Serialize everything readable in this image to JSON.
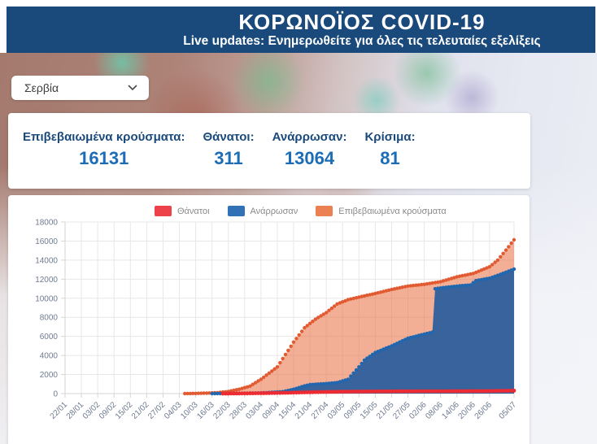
{
  "header": {
    "title": "ΚΟΡΩΝΟΪΟΣ COVID-19",
    "subtitle": "Live updates: Ενημερωθείτε για όλες τις τελευταίες εξελίξεις"
  },
  "country_selector": {
    "value": "Σερβία",
    "icon": "chevron-down"
  },
  "stats": {
    "items": [
      {
        "label": "Επιβεβαιωμένα κρούσματα:",
        "value": "16131"
      },
      {
        "label": "Θάνατοι:",
        "value": "311"
      },
      {
        "label": "Ανάρρωσαν:",
        "value": "13064"
      },
      {
        "label": "Κρίσιμα:",
        "value": "81"
      }
    ]
  },
  "colors": {
    "navy": "#1A4A7C",
    "stat_blue": "#1C6DB6",
    "deaths_red": "#ED2B33",
    "recovered_blue": "#2267AE",
    "confirmed_orange": "#E25A31",
    "grid": "#E7E7E7",
    "axis": "#D5D5D5",
    "tick_text": "#6E7B90"
  },
  "chart_data": {
    "type": "area",
    "title": "",
    "xlabel": "",
    "ylabel": "",
    "ylim": [
      0,
      18000
    ],
    "y_ticks": [
      0,
      2000,
      4000,
      6000,
      8000,
      10000,
      12000,
      14000,
      16000,
      18000
    ],
    "grid": true,
    "legend_position": "top",
    "legend": [
      {
        "label": "Θάνατοι",
        "color": "#EE424A"
      },
      {
        "label": "Ανάρρωσαν",
        "color": "#3072B5"
      },
      {
        "label": "Επιβεβαιωμένα κρούσματα",
        "color": "#EB8153"
      }
    ],
    "x_ticks": [
      {
        "label": "22/01",
        "day": 0
      },
      {
        "label": "28/01",
        "day": 6
      },
      {
        "label": "03/02",
        "day": 12
      },
      {
        "label": "09/02",
        "day": 18
      },
      {
        "label": "15/02",
        "day": 24
      },
      {
        "label": "21/02",
        "day": 30
      },
      {
        "label": "27/02",
        "day": 36
      },
      {
        "label": "04/03",
        "day": 42
      },
      {
        "label": "10/03",
        "day": 48
      },
      {
        "label": "16/03",
        "day": 54
      },
      {
        "label": "22/03",
        "day": 60
      },
      {
        "label": "28/03",
        "day": 66
      },
      {
        "label": "03/04",
        "day": 72
      },
      {
        "label": "09/04",
        "day": 78
      },
      {
        "label": "15/04",
        "day": 84
      },
      {
        "label": "21/04",
        "day": 90
      },
      {
        "label": "27/04",
        "day": 96
      },
      {
        "label": "03/05",
        "day": 102
      },
      {
        "label": "09/05",
        "day": 108
      },
      {
        "label": "15/05",
        "day": 114
      },
      {
        "label": "21/05",
        "day": 120
      },
      {
        "label": "27/05",
        "day": 126
      },
      {
        "label": "02/06",
        "day": 132
      },
      {
        "label": "08/06",
        "day": 138
      },
      {
        "label": "14/06",
        "day": 144
      },
      {
        "label": "20/06",
        "day": 150
      },
      {
        "label": "26/06",
        "day": 156
      },
      {
        "label": "05/07",
        "day": 165
      }
    ],
    "x_range_days": [
      0,
      165
    ],
    "series": [
      {
        "name": "Επιβεβαιωμένα κρούσματα",
        "color": "#E25A31",
        "fill_color": "#EB7A4F",
        "fill_opacity": 0.6,
        "dot_radius": 2.2,
        "points": [
          [
            44,
            2
          ],
          [
            48,
            19
          ],
          [
            52,
            46
          ],
          [
            56,
            97
          ],
          [
            60,
            222
          ],
          [
            64,
            456
          ],
          [
            68,
            785
          ],
          [
            72,
            1500
          ],
          [
            78,
            2800
          ],
          [
            84,
            5400
          ],
          [
            88,
            6900
          ],
          [
            92,
            7800
          ],
          [
            96,
            8500
          ],
          [
            100,
            9400
          ],
          [
            104,
            9850
          ],
          [
            108,
            10120
          ],
          [
            114,
            10500
          ],
          [
            120,
            10920
          ],
          [
            126,
            11280
          ],
          [
            132,
            11460
          ],
          [
            138,
            11740
          ],
          [
            144,
            12250
          ],
          [
            150,
            12600
          ],
          [
            156,
            13300
          ],
          [
            159,
            14000
          ],
          [
            162,
            15050
          ],
          [
            165,
            16131
          ]
        ]
      },
      {
        "name": "Ανάρρωσαν",
        "color": "#2267AE",
        "fill_color": "#2E5F9C",
        "fill_opacity": 0.95,
        "dot_radius": 2.2,
        "points": [
          [
            54,
            2
          ],
          [
            60,
            15
          ],
          [
            66,
            30
          ],
          [
            72,
            65
          ],
          [
            76,
            130
          ],
          [
            80,
            200
          ],
          [
            84,
            450
          ],
          [
            88,
            800
          ],
          [
            90,
            940
          ],
          [
            96,
            1050
          ],
          [
            100,
            1150
          ],
          [
            104,
            1500
          ],
          [
            108,
            2800
          ],
          [
            110,
            3500
          ],
          [
            114,
            4300
          ],
          [
            120,
            5000
          ],
          [
            126,
            5800
          ],
          [
            130,
            6100
          ],
          [
            135,
            6440
          ],
          [
            136,
            11000
          ],
          [
            140,
            11150
          ],
          [
            145,
            11300
          ],
          [
            149,
            11400
          ],
          [
            151,
            11850
          ],
          [
            156,
            12100
          ],
          [
            160,
            12500
          ],
          [
            165,
            13064
          ]
        ]
      },
      {
        "name": "Θάνατοι",
        "color": "#ED2B33",
        "fill_color": "#ED2B33",
        "fill_opacity": 0,
        "dot_radius": 2.4,
        "points": [
          [
            58,
            1
          ],
          [
            60,
            4
          ],
          [
            66,
            16
          ],
          [
            72,
            39
          ],
          [
            78,
            66
          ],
          [
            84,
            99
          ],
          [
            90,
            139
          ],
          [
            96,
            173
          ],
          [
            102,
            199
          ],
          [
            108,
            215
          ],
          [
            114,
            228
          ],
          [
            120,
            234
          ],
          [
            126,
            242
          ],
          [
            132,
            245
          ],
          [
            138,
            248
          ],
          [
            144,
            255
          ],
          [
            150,
            262
          ],
          [
            156,
            270
          ],
          [
            160,
            285
          ],
          [
            165,
            311
          ]
        ]
      }
    ]
  }
}
